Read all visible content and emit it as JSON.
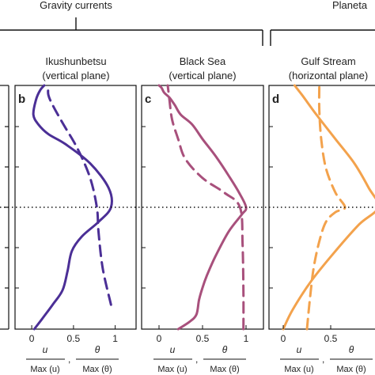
{
  "header": {
    "group_left": "Gravity currents",
    "group_right": "Planeta"
  },
  "xlabel": {
    "u_num": "u",
    "u_den": "Max (u)",
    "theta_num": "θ",
    "theta_den": "Max (θ)",
    "sep": ","
  },
  "colors": {
    "ikushunbetsu": "#4b2f96",
    "black_sea": "#a8507c",
    "gulf_stream": "#f3a24c",
    "frame": "#111111",
    "reference_line": "#111111"
  },
  "chart_data": [
    {
      "type": "line",
      "panel_label": "b",
      "title_line1": "Ikushunbetsu",
      "title_line2": "(vertical plane)",
      "x_ticks": [
        "0",
        "0.5",
        "1"
      ],
      "xlim": [
        -0.2,
        1.25
      ],
      "ylim": [
        0,
        1
      ],
      "reference_y": 0.5,
      "series": [
        {
          "style": "solid",
          "x": [
            0.03,
            0.12,
            0.25,
            0.37,
            0.43,
            0.48,
            0.6,
            0.8,
            0.95,
            0.92,
            0.7,
            0.4,
            0.2,
            0.08,
            0.02,
            0.05,
            0.1,
            0.15
          ],
          "y": [
            0.0,
            0.04,
            0.1,
            0.16,
            0.24,
            0.32,
            0.38,
            0.44,
            0.5,
            0.58,
            0.68,
            0.76,
            0.8,
            0.84,
            0.88,
            0.94,
            0.98,
            1.0
          ]
        },
        {
          "style": "dashed",
          "x": [
            0.95,
            0.85,
            0.8,
            0.78,
            0.7,
            0.55,
            0.38,
            0.25,
            0.2,
            0.2,
            0.22
          ],
          "y": [
            0.1,
            0.25,
            0.4,
            0.5,
            0.62,
            0.74,
            0.84,
            0.92,
            0.96,
            0.99,
            1.0
          ]
        }
      ]
    },
    {
      "type": "line",
      "panel_label": "c",
      "title_line1": "Black Sea",
      "title_line2": "(vertical plane)",
      "x_ticks": [
        "0",
        "0.5",
        "1"
      ],
      "xlim": [
        -0.2,
        1.2
      ],
      "ylim": [
        0,
        1
      ],
      "reference_y": 0.5,
      "series": [
        {
          "style": "solid",
          "x": [
            0.22,
            0.35,
            0.43,
            0.46,
            0.5,
            0.55,
            0.65,
            0.8,
            0.95,
            1.0,
            0.92,
            0.8,
            0.65,
            0.5,
            0.38,
            0.25,
            0.18,
            0.12,
            0.06,
            0.03,
            0.0
          ],
          "y": [
            0.0,
            0.03,
            0.06,
            0.12,
            0.17,
            0.22,
            0.3,
            0.4,
            0.47,
            0.5,
            0.56,
            0.63,
            0.71,
            0.78,
            0.84,
            0.88,
            0.92,
            0.95,
            0.97,
            0.99,
            1.0
          ]
        },
        {
          "style": "dashed",
          "x": [
            0.97,
            0.97,
            0.96,
            0.93,
            0.75,
            0.5,
            0.3,
            0.22,
            0.15,
            0.12,
            0.1
          ],
          "y": [
            0.0,
            0.15,
            0.35,
            0.5,
            0.56,
            0.62,
            0.7,
            0.78,
            0.86,
            0.94,
            1.0
          ]
        }
      ]
    },
    {
      "type": "line",
      "panel_label": "d",
      "title_line1": "Gulf Stream",
      "title_line2": "(horizontal plane)",
      "x_ticks": [
        "0",
        "0.5",
        "1"
      ],
      "xlim": [
        -0.15,
        1.1
      ],
      "ylim": [
        0,
        1
      ],
      "reference_y": 0.5,
      "series": [
        {
          "style": "solid",
          "x": [
            0.0,
            0.1,
            0.3,
            0.55,
            0.8,
            1.0,
            0.9,
            0.75,
            0.55,
            0.35,
            0.2,
            0.12
          ],
          "y": [
            0.0,
            0.08,
            0.2,
            0.32,
            0.43,
            0.5,
            0.58,
            0.68,
            0.78,
            0.88,
            0.96,
            1.0
          ]
        },
        {
          "style": "dashed",
          "x": [
            0.25,
            0.28,
            0.32,
            0.38,
            0.45,
            0.55,
            0.65,
            0.55,
            0.45,
            0.4,
            0.38,
            0.38
          ],
          "y": [
            0.0,
            0.12,
            0.25,
            0.36,
            0.44,
            0.48,
            0.5,
            0.56,
            0.66,
            0.78,
            0.9,
            1.0
          ]
        }
      ]
    }
  ]
}
